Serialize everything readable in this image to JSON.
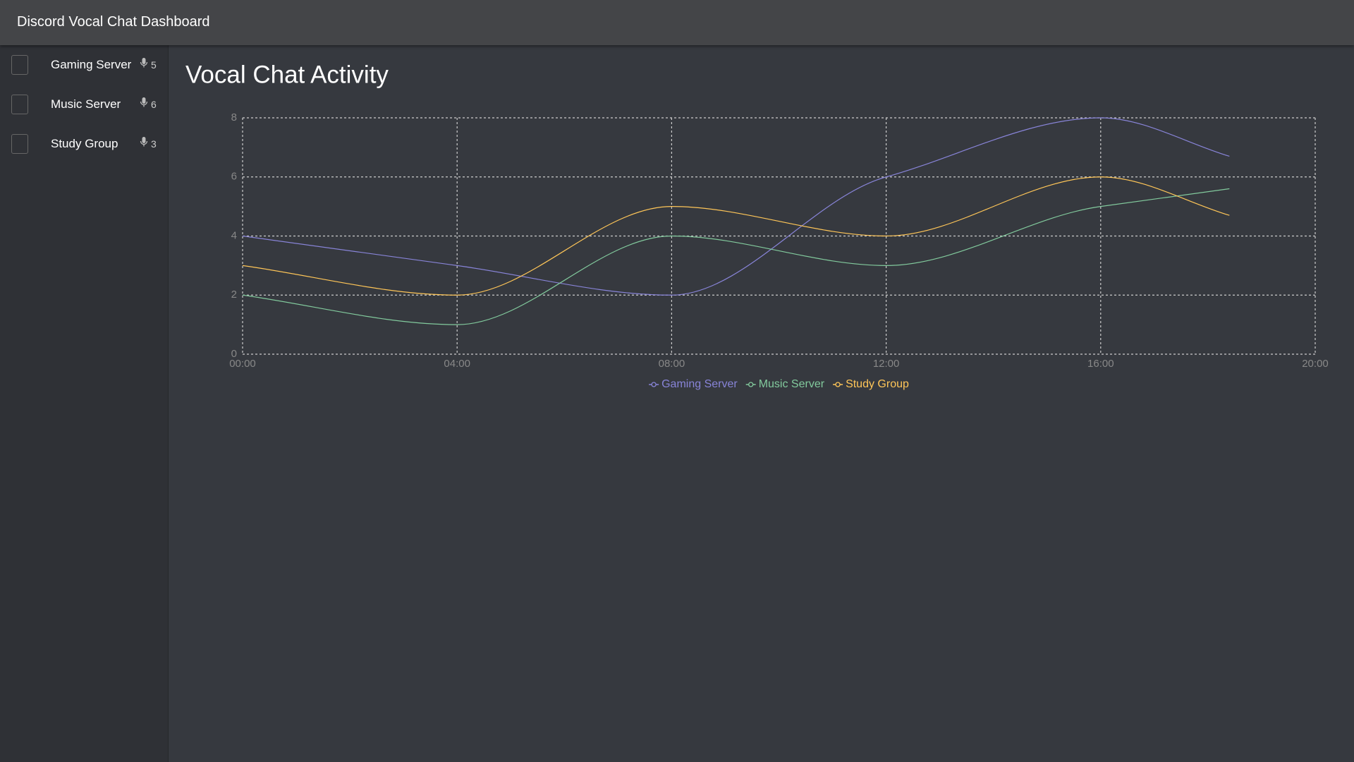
{
  "header": {
    "title": "Discord Vocal Chat Dashboard"
  },
  "servers": [
    {
      "name": "Gaming Server",
      "users": 5
    },
    {
      "name": "Music Server",
      "users": 6
    },
    {
      "name": "Study Group",
      "users": 3
    }
  ],
  "chart_data": {
    "type": "line",
    "title": "Vocal Chat Activity",
    "x": [
      0,
      4,
      8,
      12,
      16,
      18.4
    ],
    "series": [
      {
        "name": "Gaming Server",
        "color": "#8884d8",
        "values": [
          4,
          3,
          2,
          6,
          8,
          6.7
        ]
      },
      {
        "name": "Music Server",
        "color": "#82ca9d",
        "values": [
          2,
          1,
          4,
          3,
          5,
          5.6
        ]
      },
      {
        "name": "Study Group",
        "color": "#ffc658",
        "values": [
          3,
          2,
          5,
          4,
          6,
          4.7
        ]
      }
    ],
    "xlim": [
      0,
      20
    ],
    "xticks": [
      {
        "value": 0,
        "label": "00:00"
      },
      {
        "value": 4,
        "label": "04:00"
      },
      {
        "value": 8,
        "label": "08:00"
      },
      {
        "value": 12,
        "label": "12:00"
      },
      {
        "value": 16,
        "label": "16:00"
      },
      {
        "value": 20,
        "label": "20:00"
      }
    ],
    "ylim": [
      0,
      8
    ],
    "yticks": [
      0,
      2,
      4,
      6,
      8
    ],
    "grid": true,
    "legend": "bottom"
  }
}
